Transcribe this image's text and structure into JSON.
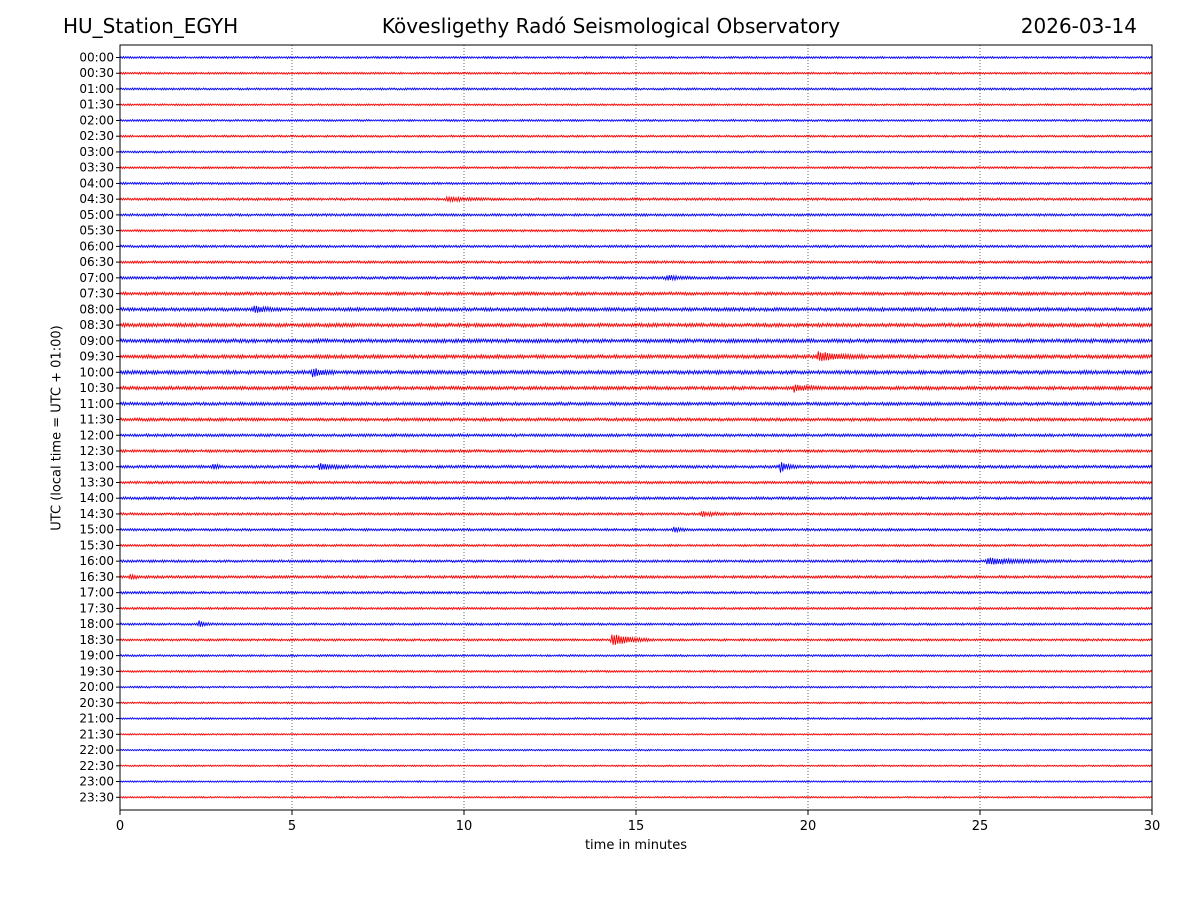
{
  "header": {
    "station": "HU_Station_EGYH",
    "observatory": "Kövesligethy Radó Seismological Observatory",
    "date": "2026-03-14"
  },
  "chart_data": {
    "type": "line",
    "xlabel": "time in minutes",
    "ylabel": "UTC (local time = UTC + 01:00)",
    "xlim": [
      0,
      30
    ],
    "xticks": [
      0,
      5,
      10,
      15,
      20,
      25,
      30
    ],
    "grid": "vertical dotted lines at x ticks",
    "trace_colors": [
      "#0000ff",
      "#ff0000"
    ],
    "rows": [
      "00:00",
      "00:30",
      "01:00",
      "01:30",
      "02:00",
      "02:30",
      "03:00",
      "03:30",
      "04:00",
      "04:30",
      "05:00",
      "05:30",
      "06:00",
      "06:30",
      "07:00",
      "07:30",
      "08:00",
      "08:30",
      "09:00",
      "09:30",
      "10:00",
      "10:30",
      "11:00",
      "11:30",
      "12:00",
      "12:30",
      "13:00",
      "13:30",
      "14:00",
      "14:30",
      "15:00",
      "15:30",
      "16:00",
      "16:30",
      "17:00",
      "17:30",
      "18:00",
      "18:30",
      "19:00",
      "19:30",
      "20:00",
      "20:30",
      "21:00",
      "21:30",
      "22:00",
      "22:30",
      "23:00",
      "23:30"
    ],
    "noise_level": [
      2,
      2,
      2,
      1.8,
      2,
      2,
      2,
      2,
      2.2,
      2.4,
      2.4,
      2.2,
      2.4,
      2.4,
      2.6,
      3,
      3.4,
      3.6,
      3.6,
      3.6,
      3.6,
      3.4,
      3.2,
      3,
      2.8,
      2.6,
      2.8,
      2.6,
      2.6,
      2.4,
      2.4,
      2.2,
      2.4,
      2.6,
      2.4,
      2.2,
      2.2,
      2.2,
      2,
      2,
      1.8,
      1.8,
      1.8,
      1.6,
      1.6,
      1.6,
      1.6,
      1.6
    ],
    "events": [
      {
        "row": "04:30",
        "t": 9.5,
        "amp": 4,
        "dur": 1.5
      },
      {
        "row": "07:00",
        "t": 15.9,
        "amp": 5,
        "dur": 0.8
      },
      {
        "row": "08:00",
        "t": 3.9,
        "amp": 6,
        "dur": 0.8
      },
      {
        "row": "09:30",
        "t": 20.3,
        "amp": 9,
        "dur": 1.4
      },
      {
        "row": "10:00",
        "t": 5.6,
        "amp": 8,
        "dur": 0.7
      },
      {
        "row": "10:30",
        "t": 19.6,
        "amp": 7,
        "dur": 0.8
      },
      {
        "row": "13:00",
        "t": 2.7,
        "amp": 5,
        "dur": 0.4
      },
      {
        "row": "13:00",
        "t": 5.8,
        "amp": 5,
        "dur": 1.2
      },
      {
        "row": "13:00",
        "t": 19.2,
        "amp": 10,
        "dur": 0.6
      },
      {
        "row": "14:30",
        "t": 16.9,
        "amp": 4,
        "dur": 1.2
      },
      {
        "row": "15:00",
        "t": 16.1,
        "amp": 5,
        "dur": 0.5
      },
      {
        "row": "16:00",
        "t": 25.2,
        "amp": 6,
        "dur": 2.5
      },
      {
        "row": "16:30",
        "t": 0.3,
        "amp": 4,
        "dur": 0.5
      },
      {
        "row": "18:00",
        "t": 2.3,
        "amp": 6,
        "dur": 0.4
      },
      {
        "row": "18:30",
        "t": 14.3,
        "amp": 14,
        "dur": 1.2
      }
    ]
  }
}
